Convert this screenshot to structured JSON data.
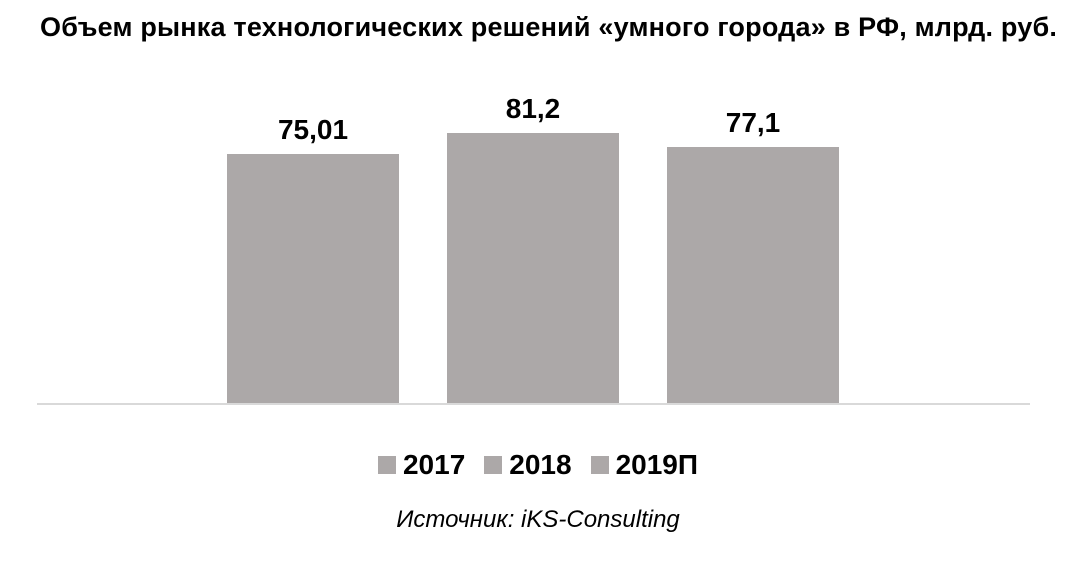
{
  "title": "Объем рынка технологических решений «умного города» в РФ, млрд. руб.",
  "source": "Источник: iKS-Consulting",
  "colors": {
    "bar": "#aca8a8",
    "axis_line": "#d9d9d9",
    "text": "#000000",
    "background": "#ffffff"
  },
  "chart_data": {
    "type": "bar",
    "title": "Объем рынка технологических решений «умного города» в РФ, млрд. руб.",
    "categories": [
      "2017",
      "2018",
      "2019П"
    ],
    "values": [
      75.01,
      81.2,
      77.1
    ],
    "value_labels": [
      "75,01",
      "81,2",
      "77,1"
    ],
    "series": [
      {
        "name": "2017",
        "values": [
          75.01
        ]
      },
      {
        "name": "2018",
        "values": [
          81.2
        ]
      },
      {
        "name": "2019П",
        "values": [
          77.1
        ]
      }
    ],
    "xlabel": "",
    "ylabel": "",
    "ylim": [
      0,
      85
    ],
    "grid": false,
    "y_axis_visible": false,
    "x_tick_labels_visible": false,
    "legend_position": "bottom",
    "legend_entries": [
      "2017",
      "2018",
      "2019П"
    ],
    "source": "Источник: iKS-Consulting"
  }
}
